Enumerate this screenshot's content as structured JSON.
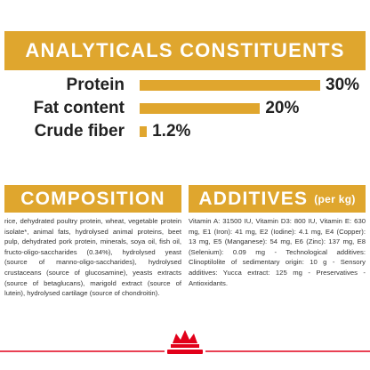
{
  "analytics": {
    "title": "ANALYTICALS CONSTITUENTS",
    "items": [
      {
        "name": "Protein",
        "value": 30,
        "value_label": "30%"
      },
      {
        "name": "Fat content",
        "value": 20,
        "value_label": "20%"
      },
      {
        "name": "Crude fiber",
        "value": 1.2,
        "value_label": "1.2%"
      }
    ]
  },
  "composition": {
    "title": "COMPOSITION",
    "text": "rice, dehydrated poultry protein, wheat, vegetable protein isolate*, animal fats, hydrolysed animal proteins, beet pulp, dehydrated pork protein, minerals, soya oil, fish oil, fructo-oligo-saccharides (0.34%), hydrolysed yeast (source of manno-oligo-saccharides), hydrolysed crustaceans (source of glucosamine), yeasts extracts (source of betaglucans), marigold extract (source of lutein), hydrolysed cartilage (source of chondroitin)."
  },
  "additives": {
    "title": "ADDITIVES",
    "unit": "(per kg)",
    "text": "Vitamin A: 31500 IU, Vitamin D3: 800 IU, Vitamin E: 630 mg, E1 (Iron): 41 mg, E2 (Iodine): 4.1 mg, E4 (Copper): 13 mg, E5 (Manganese): 54 mg, E6 (Zinc): 137 mg, E8 (Selenium): 0.09 mg - Technological additives: Clinoptilolite of sedimentary origin: 10 g - Sensory additives: Yucca extract: 125 mg - Preservatives - Antioxidants."
  }
}
